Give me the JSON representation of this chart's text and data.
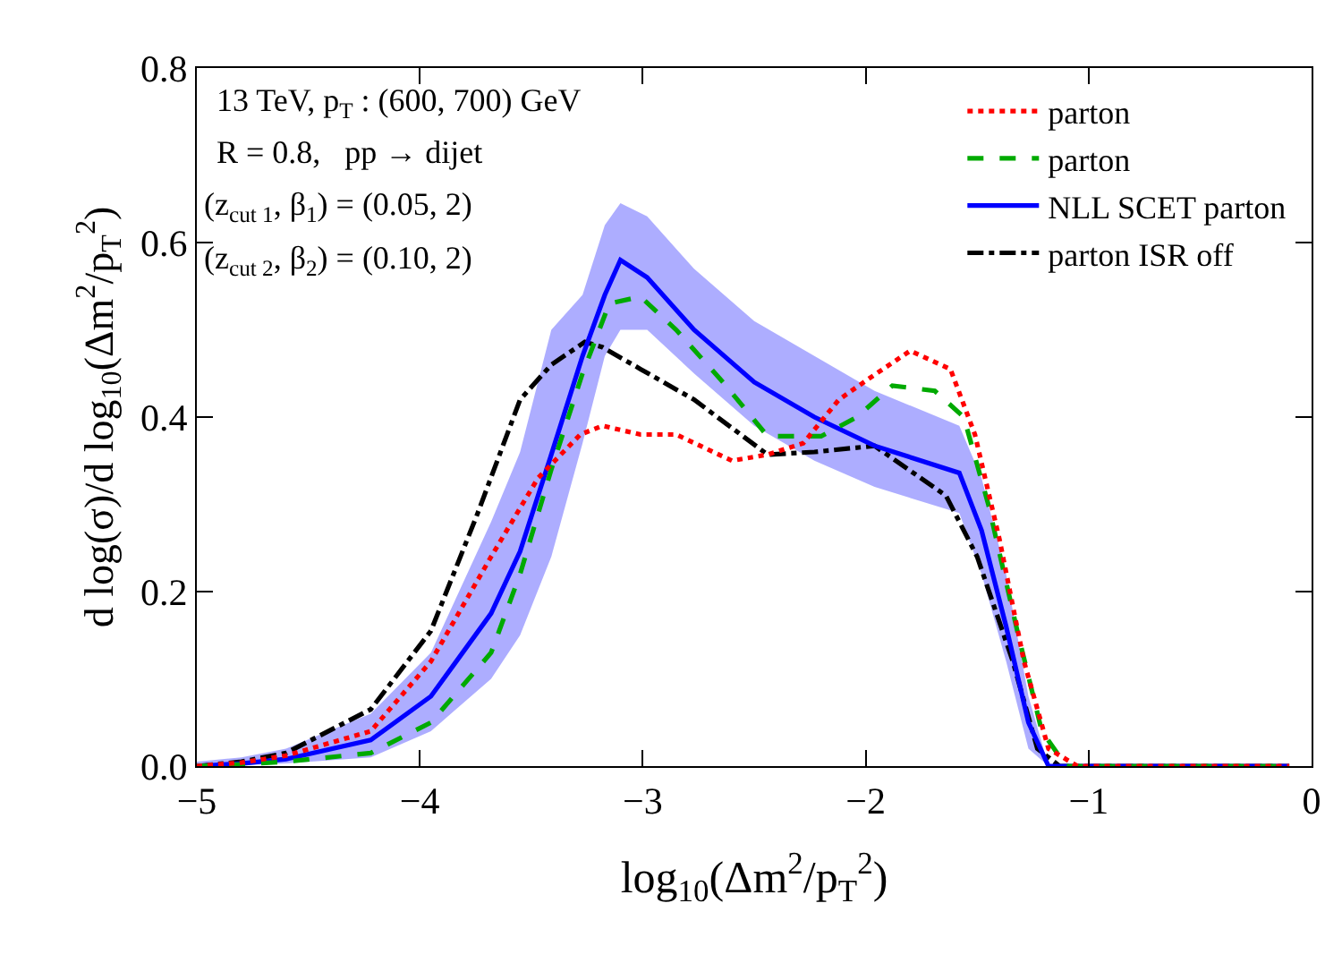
{
  "chart_data": {
    "type": "line",
    "xlabel": "log$_{10}$(Δm$^{2}$/p$_{T}$$^{2}$)",
    "ylabel": "d log(σ)/d log$_{10}$(Δm$^{2}$/p$_{T}$$^{2}$)",
    "annotations": [
      "13 TeV, p$_{T}$ : (600, 700) GeV",
      "R = 0.8,   pp → dijet",
      "(z$_{cut 1}$, β$_{1}$) = (0.05, 2)",
      "(z$_{cut 2}$, β$_{2}$) = (0.10, 2)"
    ],
    "xlim": [
      -5,
      0
    ],
    "xticks": [
      -5,
      -4,
      -3,
      -2,
      -1,
      0
    ],
    "ylim": [
      0,
      0.8
    ],
    "yticks": [
      {
        "value": 0,
        "label": "0.0"
      },
      {
        "value": 0.2,
        "label": "0.2"
      },
      {
        "value": 0.4,
        "label": "0.4"
      },
      {
        "value": 0.6,
        "label": "0.6"
      },
      {
        "value": 0.8,
        "label": "0.8"
      }
    ],
    "grid": false,
    "legend": "top right",
    "marker": "none",
    "series": [
      {
        "name": "parton",
        "color": "#ff0000",
        "line_style": "dotted",
        "x": [
          -5,
          -4.8,
          -4.6,
          -4.22,
          -3.95,
          -3.68,
          -3.47,
          -3.28,
          -3.18,
          -3.01,
          -2.85,
          -2.6,
          -2.44,
          -2.28,
          -2.12,
          -1.98,
          -1.8,
          -1.62,
          -1.51,
          -1.4,
          -1.29,
          -1.18,
          -1.05,
          -0.1
        ],
        "values": [
          0,
          0.004,
          0.012,
          0.04,
          0.12,
          0.24,
          0.33,
          0.38,
          0.39,
          0.38,
          0.38,
          0.35,
          0.357,
          0.37,
          0.42,
          0.445,
          0.476,
          0.455,
          0.38,
          0.26,
          0.12,
          0.02,
          0,
          0
        ]
      },
      {
        "name": "parton",
        "color": "#00aa00",
        "line_style": "dashed",
        "x": [
          -5,
          -4.8,
          -4.6,
          -4.22,
          -3.95,
          -3.68,
          -3.55,
          -3.41,
          -3.27,
          -3.15,
          -3.01,
          -2.85,
          -2.64,
          -2.44,
          -2.2,
          -2.04,
          -1.88,
          -1.69,
          -1.56,
          -1.45,
          -1.32,
          -1.21,
          -1.1,
          -0.1
        ],
        "values": [
          0,
          0.002,
          0.005,
          0.015,
          0.05,
          0.13,
          0.22,
          0.34,
          0.45,
          0.53,
          0.538,
          0.5,
          0.44,
          0.378,
          0.378,
          0.4,
          0.436,
          0.43,
          0.4,
          0.3,
          0.155,
          0.04,
          0,
          0
        ]
      },
      {
        "name": "NLL SCET parton",
        "color": "#0000ff",
        "line_style": "solid",
        "x": [
          -5,
          -4.8,
          -4.6,
          -4.22,
          -3.95,
          -3.68,
          -3.55,
          -3.41,
          -3.27,
          -3.17,
          -3.1,
          -2.98,
          -2.77,
          -2.5,
          -2.23,
          -1.96,
          -1.58,
          -1.48,
          -1.37,
          -1.27,
          -1.18,
          -0.1
        ],
        "values": [
          0,
          0.003,
          0.008,
          0.03,
          0.08,
          0.175,
          0.246,
          0.357,
          0.47,
          0.54,
          0.58,
          0.56,
          0.5,
          0.44,
          0.4,
          0.367,
          0.336,
          0.27,
          0.16,
          0.05,
          0,
          0
        ],
        "lower": [
          0,
          0.001,
          0.003,
          0.01,
          0.04,
          0.1,
          0.15,
          0.24,
          0.37,
          0.47,
          0.5,
          0.5,
          0.45,
          0.39,
          0.35,
          0.32,
          0.29,
          0.22,
          0.12,
          0.02,
          0,
          0
        ],
        "upper": [
          0.005,
          0.01,
          0.02,
          0.06,
          0.13,
          0.28,
          0.36,
          0.5,
          0.54,
          0.62,
          0.645,
          0.63,
          0.57,
          0.51,
          0.47,
          0.43,
          0.39,
          0.33,
          0.22,
          0.08,
          0,
          0
        ]
      },
      {
        "name": "parton ISR off",
        "color": "#000000",
        "line_style": "dashdot",
        "x": [
          -5,
          -4.8,
          -4.6,
          -4.22,
          -3.95,
          -3.74,
          -3.55,
          -3.41,
          -3.26,
          -3.18,
          -3.01,
          -2.77,
          -2.44,
          -2.23,
          -1.96,
          -1.64,
          -1.5,
          -1.34,
          -1.23,
          -1.13,
          -0.1
        ],
        "values": [
          0,
          0.005,
          0.015,
          0.065,
          0.155,
          0.29,
          0.42,
          0.46,
          0.486,
          0.48,
          0.455,
          0.42,
          0.357,
          0.36,
          0.367,
          0.31,
          0.24,
          0.12,
          0.02,
          0,
          0
        ]
      }
    ]
  }
}
